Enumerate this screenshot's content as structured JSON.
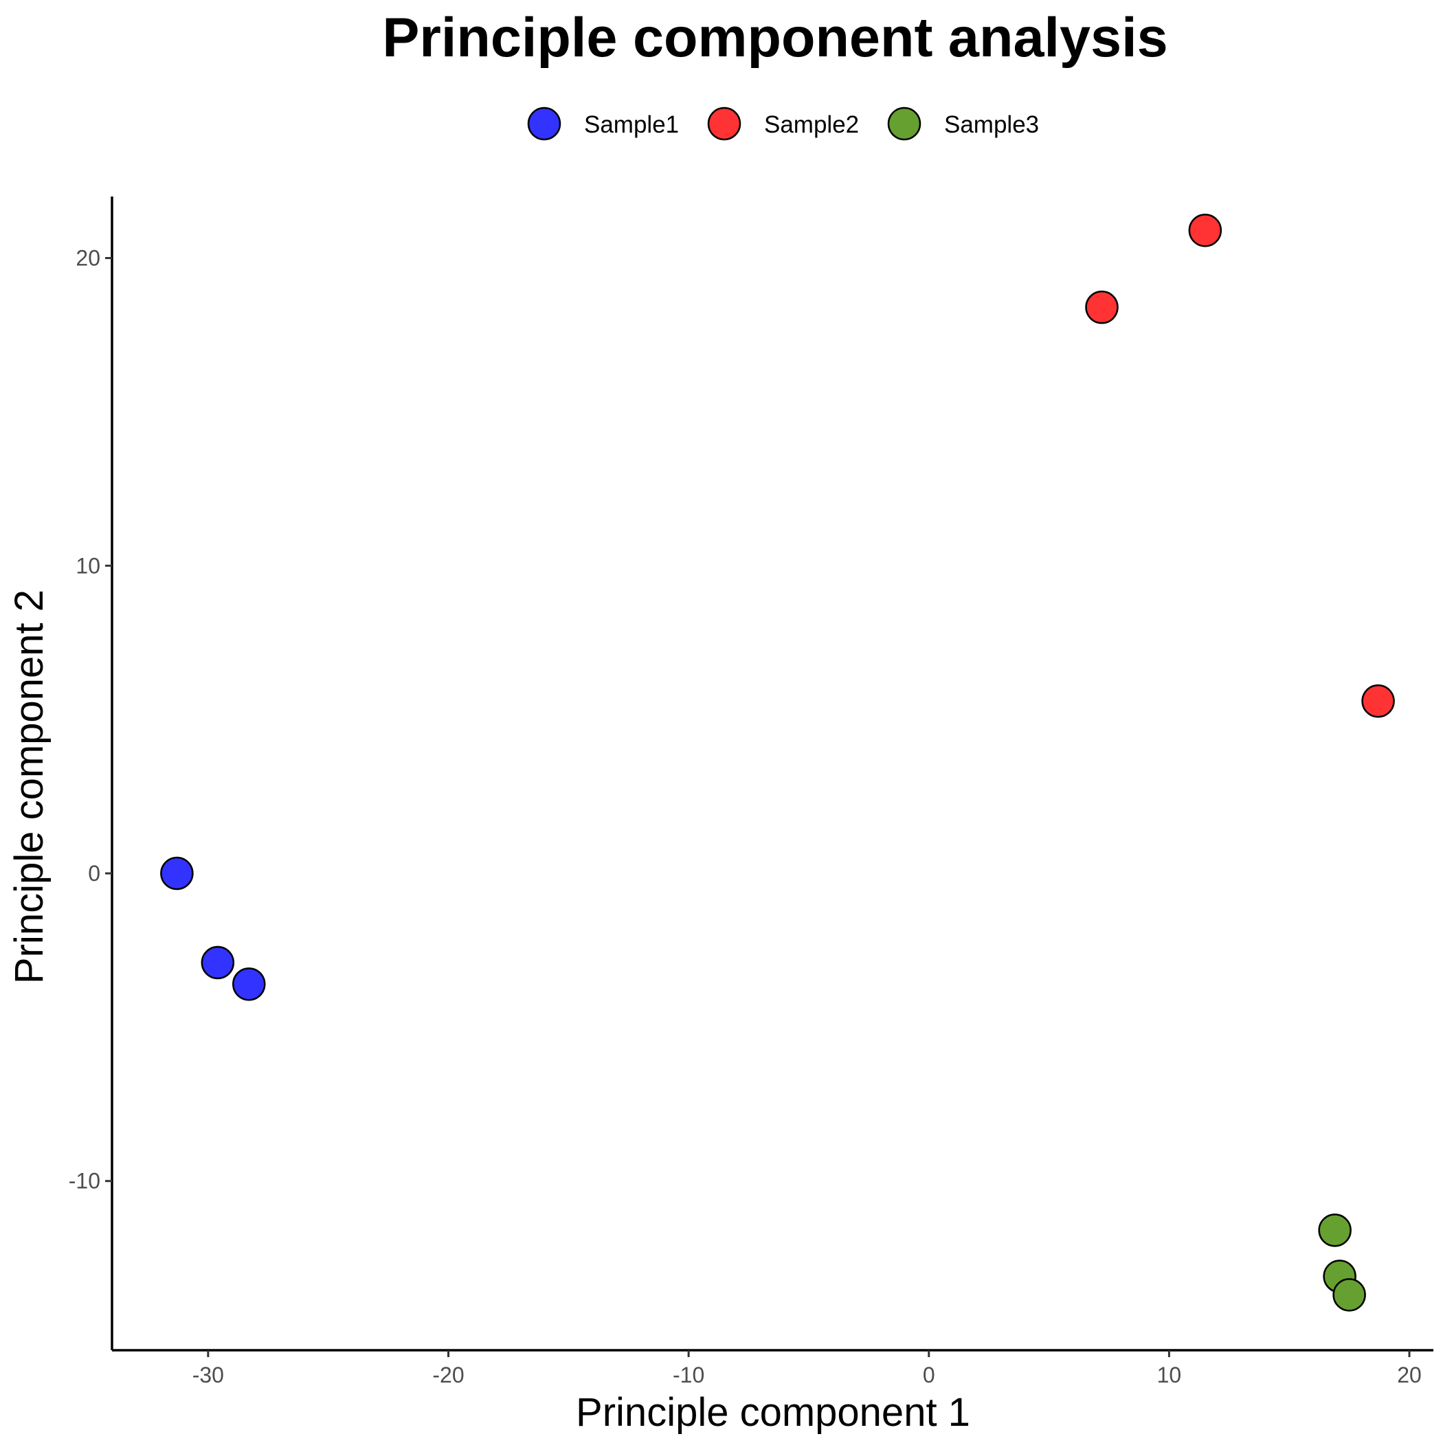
{
  "chart_data": {
    "type": "scatter",
    "title": "Principle component analysis",
    "xlabel": "Principle component 1",
    "ylabel": "Principle component 2",
    "xlim": [
      -34.0,
      21.0
    ],
    "ylim": [
      -15.5,
      22.0
    ],
    "xticks": [
      -30,
      -20,
      -10,
      0,
      10,
      20
    ],
    "yticks": [
      -10,
      0,
      10,
      20
    ],
    "grid": false,
    "legend_position": "top",
    "series": [
      {
        "name": "Sample1",
        "color": "#3333ff",
        "points": [
          [
            -31.3,
            0.0
          ],
          [
            -29.6,
            -2.9
          ],
          [
            -28.3,
            -3.6
          ]
        ]
      },
      {
        "name": "Sample2",
        "color": "#ff3333",
        "points": [
          [
            7.2,
            18.4
          ],
          [
            11.5,
            20.9
          ],
          [
            18.7,
            5.6
          ]
        ]
      },
      {
        "name": "Sample3",
        "color": "#66a030",
        "points": [
          [
            16.9,
            -11.6
          ],
          [
            17.1,
            -13.1
          ],
          [
            17.5,
            -13.7
          ]
        ]
      }
    ]
  }
}
